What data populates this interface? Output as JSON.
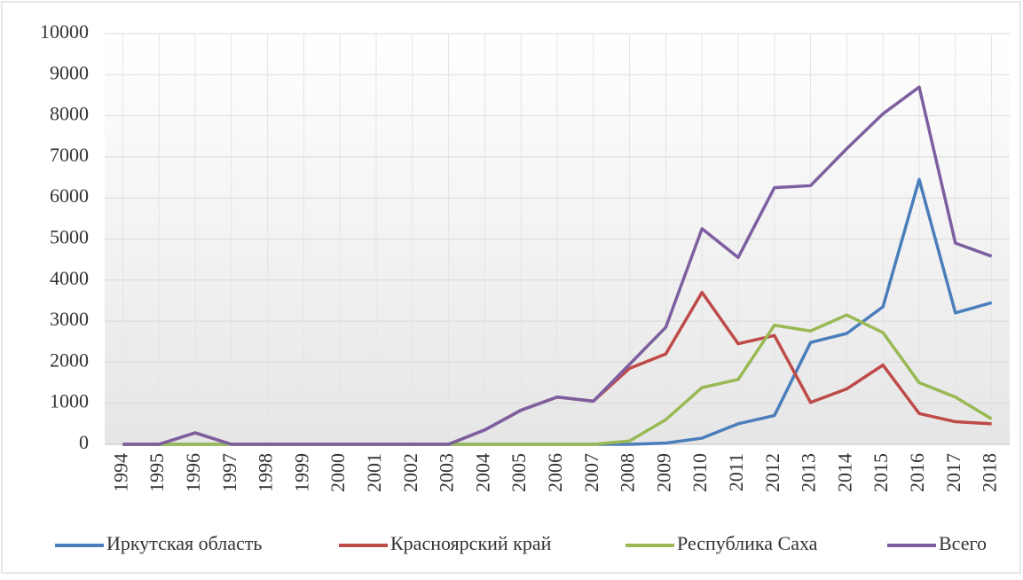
{
  "chart_data": {
    "type": "line",
    "categories": [
      "1994",
      "1995",
      "1996",
      "1997",
      "1998",
      "1999",
      "2000",
      "2001",
      "2002",
      "2003",
      "2004",
      "2005",
      "2006",
      "2007",
      "2008",
      "2009",
      "2010",
      "2011",
      "2012",
      "2013",
      "2014",
      "2015",
      "2016",
      "2017",
      "2018"
    ],
    "series": [
      {
        "name": "Иркутская область",
        "color": "#4a7ebb",
        "values": [
          0,
          0,
          0,
          0,
          0,
          0,
          0,
          0,
          0,
          0,
          0,
          0,
          0,
          0,
          0,
          30,
          150,
          500,
          700,
          2480,
          2700,
          3350,
          6450,
          3200,
          3450
        ]
      },
      {
        "name": "Красноярский край",
        "color": "#be4b48",
        "values": [
          0,
          0,
          280,
          0,
          0,
          0,
          0,
          0,
          0,
          0,
          350,
          830,
          1150,
          1050,
          1850,
          2200,
          3700,
          2450,
          2650,
          1020,
          1350,
          1930,
          750,
          550,
          500
        ]
      },
      {
        "name": "Республика Саха",
        "color": "#98b954",
        "values": [
          0,
          0,
          0,
          0,
          0,
          0,
          0,
          0,
          0,
          0,
          0,
          0,
          0,
          0,
          80,
          600,
          1380,
          1580,
          2900,
          2760,
          3150,
          2720,
          1500,
          1150,
          620
        ]
      },
      {
        "name": "Всего",
        "color": "#7d5fa0",
        "values": [
          0,
          0,
          280,
          0,
          0,
          0,
          0,
          0,
          0,
          0,
          350,
          830,
          1150,
          1050,
          1950,
          2850,
          5250,
          4550,
          6250,
          6300,
          7200,
          8050,
          8700,
          4900,
          4580
        ]
      }
    ],
    "ylim": [
      0,
      10000
    ],
    "yticks": [
      0,
      1000,
      2000,
      3000,
      4000,
      5000,
      6000,
      7000,
      8000,
      9000,
      10000
    ],
    "grid": true,
    "legend": "bottom"
  }
}
